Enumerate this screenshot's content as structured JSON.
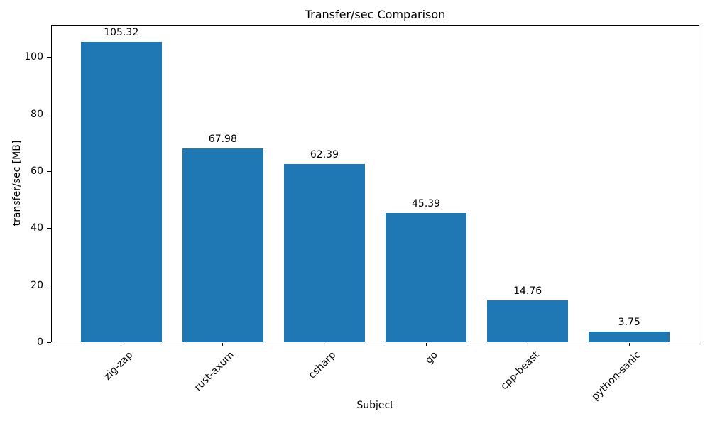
{
  "chart_data": {
    "type": "bar",
    "title": "Transfer/sec Comparison",
    "xlabel": "Subject",
    "ylabel": "transfer/sec [MB]",
    "categories": [
      "zig-zap",
      "rust-axum",
      "csharp",
      "go",
      "cpp-beast",
      "python-sanic"
    ],
    "values": [
      105.32,
      67.98,
      62.39,
      45.39,
      14.76,
      3.75
    ],
    "bar_value_labels": [
      "105.32",
      "67.98",
      "62.39",
      "45.39",
      "14.76",
      "3.75"
    ],
    "yticks": [
      0,
      20,
      40,
      60,
      80,
      100
    ],
    "ylim": [
      0,
      111.3
    ],
    "xtick_rotation_deg": 45,
    "bar_color": "#1f77b4",
    "axis_color": "#000000",
    "background_color": "#ffffff",
    "grid": false,
    "legend": "none"
  }
}
